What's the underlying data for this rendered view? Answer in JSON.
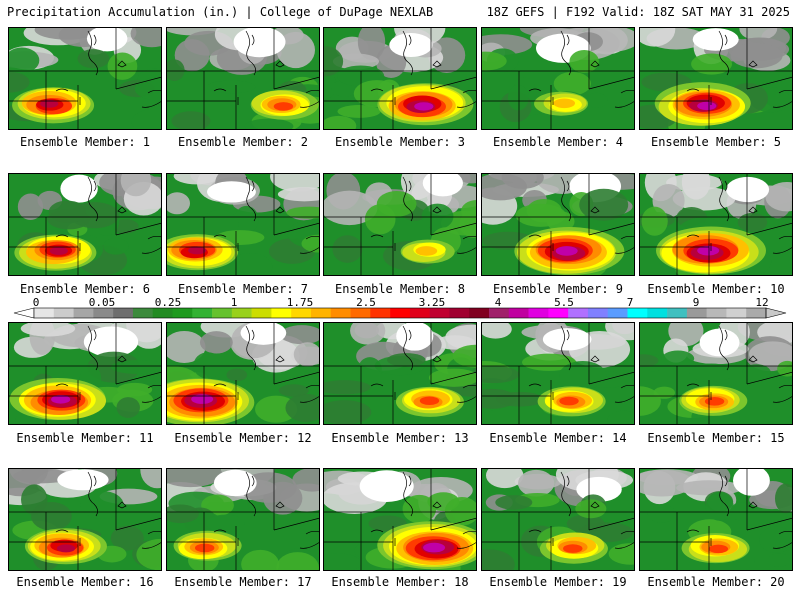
{
  "header": {
    "title": "Precipitation Accumulation (in.) | College of DuPage NEXLAB",
    "run_info": "18Z GEFS | F192 Valid: 18Z SAT MAY 31 2025"
  },
  "legend": {
    "labels": [
      "0",
      "0.05",
      "0.25",
      "1",
      "1.75",
      "2.5",
      "3.25",
      "4",
      "5.5",
      "7",
      "9",
      "12"
    ],
    "colors": [
      "#e6e6e6",
      "#cccccc",
      "#a6a6a6",
      "#8a8a8a",
      "#6e6e6e",
      "#3c8a3c",
      "#228b22",
      "#1f9a1f",
      "#33b233",
      "#66c22e",
      "#99d11c",
      "#ccdd00",
      "#ffff00",
      "#ffd700",
      "#ffb300",
      "#ff8c00",
      "#ff6a00",
      "#ff3300",
      "#ff0000",
      "#e0001a",
      "#c00030",
      "#a00030",
      "#800020",
      "#a0206a",
      "#c000a0",
      "#e000e0",
      "#ff00ff",
      "#b070ff",
      "#8080ff",
      "#5a9cff",
      "#00ffff",
      "#00e0e0",
      "#40c0c0",
      "#9a9a9a",
      "#b8b8b8",
      "#d0d0d0",
      "#aaaaaa"
    ]
  },
  "panels": [
    {
      "label": "Ensemble Member: 1",
      "intensity": 3
    },
    {
      "label": "Ensemble Member: 2",
      "intensity": 2
    },
    {
      "label": "Ensemble Member: 3",
      "intensity": 4
    },
    {
      "label": "Ensemble Member: 4",
      "intensity": 1
    },
    {
      "label": "Ensemble Member: 5",
      "intensity": 4
    },
    {
      "label": "Ensemble Member: 6",
      "intensity": 3
    },
    {
      "label": "Ensemble Member: 7",
      "intensity": 3
    },
    {
      "label": "Ensemble Member: 8",
      "intensity": 1
    },
    {
      "label": "Ensemble Member: 9",
      "intensity": 5
    },
    {
      "label": "Ensemble Member: 10",
      "intensity": 5
    },
    {
      "label": "Ensemble Member: 11",
      "intensity": 4
    },
    {
      "label": "Ensemble Member: 12",
      "intensity": 5
    },
    {
      "label": "Ensemble Member: 13",
      "intensity": 2
    },
    {
      "label": "Ensemble Member: 14",
      "intensity": 2
    },
    {
      "label": "Ensemble Member: 15",
      "intensity": 2
    },
    {
      "label": "Ensemble Member: 16",
      "intensity": 3
    },
    {
      "label": "Ensemble Member: 17",
      "intensity": 2
    },
    {
      "label": "Ensemble Member: 18",
      "intensity": 5
    },
    {
      "label": "Ensemble Member: 19",
      "intensity": 2
    },
    {
      "label": "Ensemble Member: 20",
      "intensity": 2
    }
  ]
}
